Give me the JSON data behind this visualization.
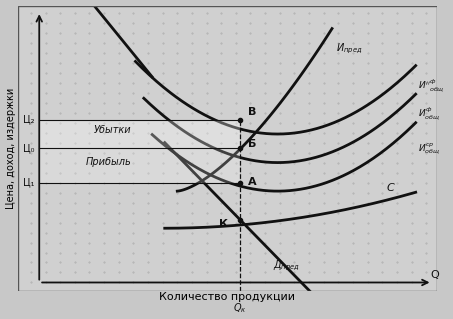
{
  "ylabel": "Цена, доход, издержки",
  "xlabel": "Количество продукции",
  "xlim": [
    0,
    10
  ],
  "ylim": [
    0,
    10
  ],
  "Qk": 5.3,
  "Ts1": 3.8,
  "Ts0": 5.0,
  "Ts2": 6.0,
  "bg_color": "#d8d8d8",
  "curve_color": "#111111",
  "point_A": [
    5.3,
    3.8
  ],
  "point_B": [
    5.3,
    6.0
  ],
  "point_Б": [
    5.3,
    5.0
  ],
  "point_K": [
    5.3,
    2.5
  ]
}
